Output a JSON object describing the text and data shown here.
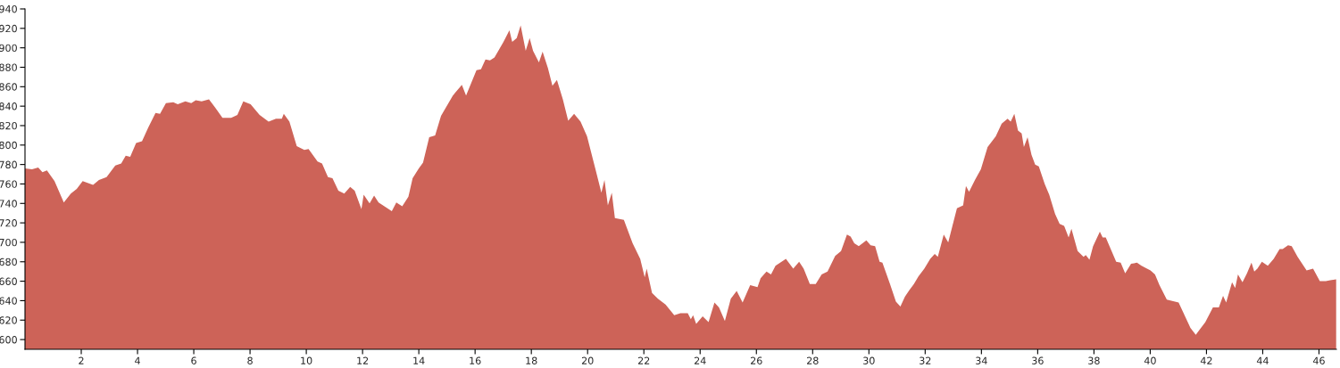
{
  "chart_data": {
    "type": "area",
    "color": "#cd6358",
    "x": [
      0,
      0.25,
      0.47,
      0.62,
      0.78,
      1.05,
      1.38,
      1.63,
      1.84,
      2.05,
      2.42,
      2.63,
      2.9,
      3.21,
      3.42,
      3.58,
      3.74,
      3.95,
      4.16,
      4.38,
      4.64,
      4.8,
      5.01,
      5.27,
      5.43,
      5.7,
      5.91,
      6.07,
      6.28,
      6.54,
      6.75,
      7.02,
      7.33,
      7.55,
      7.76,
      8.02,
      8.34,
      8.66,
      8.92,
      9.13,
      9.2,
      9.4,
      9.66,
      9.93,
      10.08,
      10.4,
      10.56,
      10.77,
      10.93,
      11.14,
      11.35,
      11.56,
      11.72,
      11.96,
      12.04,
      12.25,
      12.41,
      12.57,
      13.04,
      13.2,
      13.41,
      13.63,
      13.78,
      14.0,
      14.15,
      14.37,
      14.58,
      14.79,
      15.21,
      15.53,
      15.68,
      16.05,
      16.21,
      16.37,
      16.53,
      16.69,
      17.01,
      17.22,
      17.32,
      17.48,
      17.62,
      17.8,
      17.94,
      18.06,
      18.27,
      18.4,
      18.59,
      18.75,
      18.91,
      19.12,
      19.31,
      19.52,
      19.75,
      19.98,
      20.28,
      20.49,
      20.6,
      20.72,
      20.86,
      20.97,
      21.29,
      21.6,
      21.87,
      22.03,
      22.1,
      22.29,
      22.5,
      22.77,
      23.08,
      23.3,
      23.56,
      23.67,
      23.75,
      23.86,
      24.09,
      24.3,
      24.51,
      24.67,
      24.88,
      25.09,
      25.3,
      25.51,
      25.78,
      26.04,
      26.15,
      26.36,
      26.52,
      26.68,
      27.05,
      27.31,
      27.52,
      27.68,
      27.9,
      28.11,
      28.32,
      28.53,
      28.8,
      29.01,
      29.22,
      29.35,
      29.48,
      29.64,
      29.91,
      30.06,
      30.22,
      30.38,
      30.48,
      30.75,
      30.96,
      31.12,
      31.28,
      31.44,
      31.6,
      31.76,
      31.97,
      32.18,
      32.34,
      32.45,
      32.66,
      32.82,
      33.13,
      33.35,
      33.45,
      33.56,
      33.77,
      33.98,
      34.22,
      34.51,
      34.72,
      34.93,
      35.04,
      35.17,
      35.3,
      35.43,
      35.51,
      35.64,
      35.78,
      35.91,
      36.04,
      36.25,
      36.41,
      36.62,
      36.78,
      36.94,
      37.1,
      37.2,
      37.42,
      37.63,
      37.71,
      37.84,
      37.97,
      38.21,
      38.31,
      38.42,
      38.79,
      38.95,
      39.11,
      39.32,
      39.53,
      39.69,
      40.01,
      40.17,
      40.33,
      40.59,
      41.01,
      41.43,
      41.62,
      41.75,
      41.96,
      42.23,
      42.44,
      42.59,
      42.7,
      42.91,
      43.02,
      43.12,
      43.28,
      43.44,
      43.6,
      43.7,
      43.81,
      43.97,
      44.18,
      44.39,
      44.6,
      44.71,
      44.9,
      45.03,
      45.24,
      45.56,
      45.79,
      46.03,
      46.24,
      46.4,
      46.61
    ],
    "values": [
      776,
      775,
      777,
      772,
      774,
      763,
      741,
      750,
      755,
      763,
      759,
      764,
      767,
      779,
      781,
      789,
      788,
      802,
      804,
      818,
      833,
      832,
      843,
      844,
      842,
      845,
      843,
      846,
      845,
      847,
      839,
      828,
      828,
      831,
      845,
      842,
      831,
      824,
      827,
      827,
      832,
      824,
      799,
      795,
      796,
      783,
      781,
      767,
      766,
      753,
      750,
      757,
      753,
      734,
      749,
      740,
      748,
      741,
      732,
      741,
      737,
      747,
      766,
      776,
      782,
      808,
      810,
      830,
      851,
      862,
      851,
      877,
      878,
      888,
      887,
      890,
      906,
      918,
      906,
      910,
      923,
      897,
      910,
      897,
      885,
      896,
      879,
      861,
      867,
      847,
      825,
      832,
      824,
      809,
      775,
      751,
      764,
      738,
      751,
      725,
      723,
      699,
      683,
      664,
      673,
      648,
      642,
      636,
      625,
      627,
      627,
      621,
      625,
      616,
      624,
      618,
      638,
      633,
      619,
      642,
      650,
      638,
      656,
      654,
      663,
      670,
      667,
      676,
      683,
      673,
      680,
      673,
      657,
      657,
      667,
      670,
      686,
      691,
      708,
      706,
      699,
      696,
      702,
      697,
      696,
      680,
      679,
      657,
      639,
      634,
      644,
      651,
      657,
      665,
      673,
      683,
      688,
      685,
      708,
      700,
      735,
      738,
      758,
      752,
      764,
      775,
      798,
      809,
      822,
      827,
      824,
      832,
      815,
      812,
      798,
      808,
      790,
      780,
      778,
      760,
      749,
      729,
      719,
      717,
      705,
      714,
      691,
      685,
      687,
      682,
      696,
      711,
      705,
      705,
      680,
      679,
      668,
      678,
      679,
      676,
      671,
      667,
      656,
      641,
      638,
      612,
      605,
      610,
      618,
      633,
      633,
      645,
      638,
      659,
      653,
      667,
      659,
      668,
      679,
      670,
      673,
      680,
      676,
      683,
      693,
      693,
      697,
      696,
      685,
      671,
      673,
      660,
      660,
      661,
      662
    ],
    "xlim": [
      0,
      46.62
    ],
    "ylim": [
      590,
      940
    ],
    "xticks": [
      2,
      4,
      6,
      8,
      10,
      12,
      14,
      16,
      18,
      20,
      22,
      24,
      26,
      28,
      30,
      32,
      34,
      36,
      38,
      40,
      42,
      44,
      46
    ],
    "yticks": [
      600,
      620,
      640,
      660,
      680,
      700,
      720,
      740,
      760,
      780,
      800,
      820,
      840,
      860,
      880,
      900,
      920,
      940
    ],
    "grid": false,
    "legend": false
  }
}
